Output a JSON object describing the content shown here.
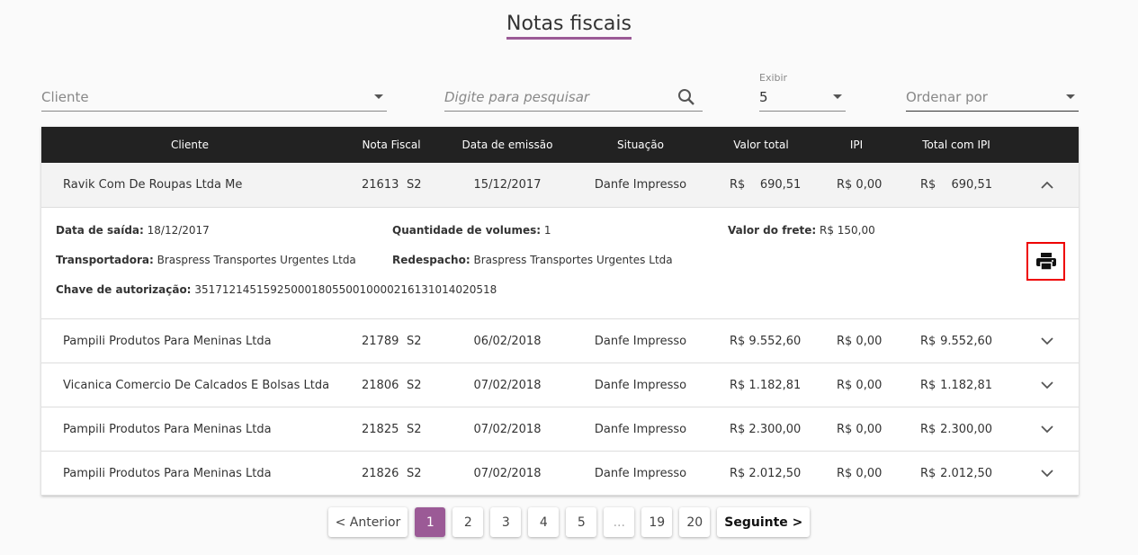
{
  "title": "Notas fiscais",
  "filters": {
    "cliente_placeholder": "Cliente",
    "search_placeholder": "Digite para pesquisar",
    "exibir_label": "Exibir",
    "exibir_value": "5",
    "ordenar_placeholder": "Ordenar por"
  },
  "columns": [
    "Cliente",
    "Nota Fiscal",
    "Data de emissão",
    "Situação",
    "Valor total",
    "IPI",
    "Total com IPI"
  ],
  "rows": [
    {
      "cliente": "Ravik Com De Roupas Ltda Me",
      "nota": "21613",
      "serie": "S2",
      "data": "15/12/2017",
      "situacao": "Danfe Impresso",
      "valor": "R$    690,51",
      "ipi": "R$ 0,00",
      "total_cur": "R$",
      "total": "690,51",
      "expanded": true
    },
    {
      "cliente": "Pampili Produtos Para Meninas Ltda",
      "nota": "21789",
      "serie": "S2",
      "data": "06/02/2018",
      "situacao": "Danfe Impresso",
      "valor": "R$ 9.552,60",
      "ipi": "R$ 0,00",
      "total_cur": "R$",
      "total": "9.552,60"
    },
    {
      "cliente": "Vicanica Comercio De Calcados E Bolsas Ltda",
      "nota": "21806",
      "serie": "S2",
      "data": "07/02/2018",
      "situacao": "Danfe Impresso",
      "valor": "R$ 1.182,81",
      "ipi": "R$ 0,00",
      "total_cur": "R$",
      "total": "1.182,81"
    },
    {
      "cliente": "Pampili Produtos Para Meninas Ltda",
      "nota": "21825",
      "serie": "S2",
      "data": "07/02/2018",
      "situacao": "Danfe Impresso",
      "valor": "R$ 2.300,00",
      "ipi": "R$ 0,00",
      "total_cur": "R$",
      "total": "2.300,00"
    },
    {
      "cliente": "Pampili Produtos Para Meninas Ltda",
      "nota": "21826",
      "serie": "S2",
      "data": "07/02/2018",
      "situacao": "Danfe Impresso",
      "valor": "R$ 2.012,50",
      "ipi": "R$ 0,00",
      "total_cur": "R$",
      "total": "2.012,50"
    }
  ],
  "detail": {
    "data_saida_label": "Data de saída:",
    "data_saida": "18/12/2017",
    "qtd_label": "Quantidade de volumes:",
    "qtd": "1",
    "frete_label": "Valor do frete:",
    "frete": "R$ 150,00",
    "transp_label": "Transportadora:",
    "transp": "Braspress Transportes Urgentes Ltda",
    "redesp_label": "Redespacho:",
    "redesp": "Braspress Transportes Urgentes Ltda",
    "chave_label": "Chave de autorização:",
    "chave": "35171214515925000180550010000216131014020518"
  },
  "pagination": {
    "prev": "< Anterior",
    "pages": [
      "1",
      "2",
      "3",
      "4",
      "5",
      "...",
      "19",
      "20"
    ],
    "current": "1",
    "next": "Seguinte >"
  },
  "colors": {
    "accent": "#9b5a96",
    "header_bg": "#222222",
    "highlight": "#ee0000"
  }
}
